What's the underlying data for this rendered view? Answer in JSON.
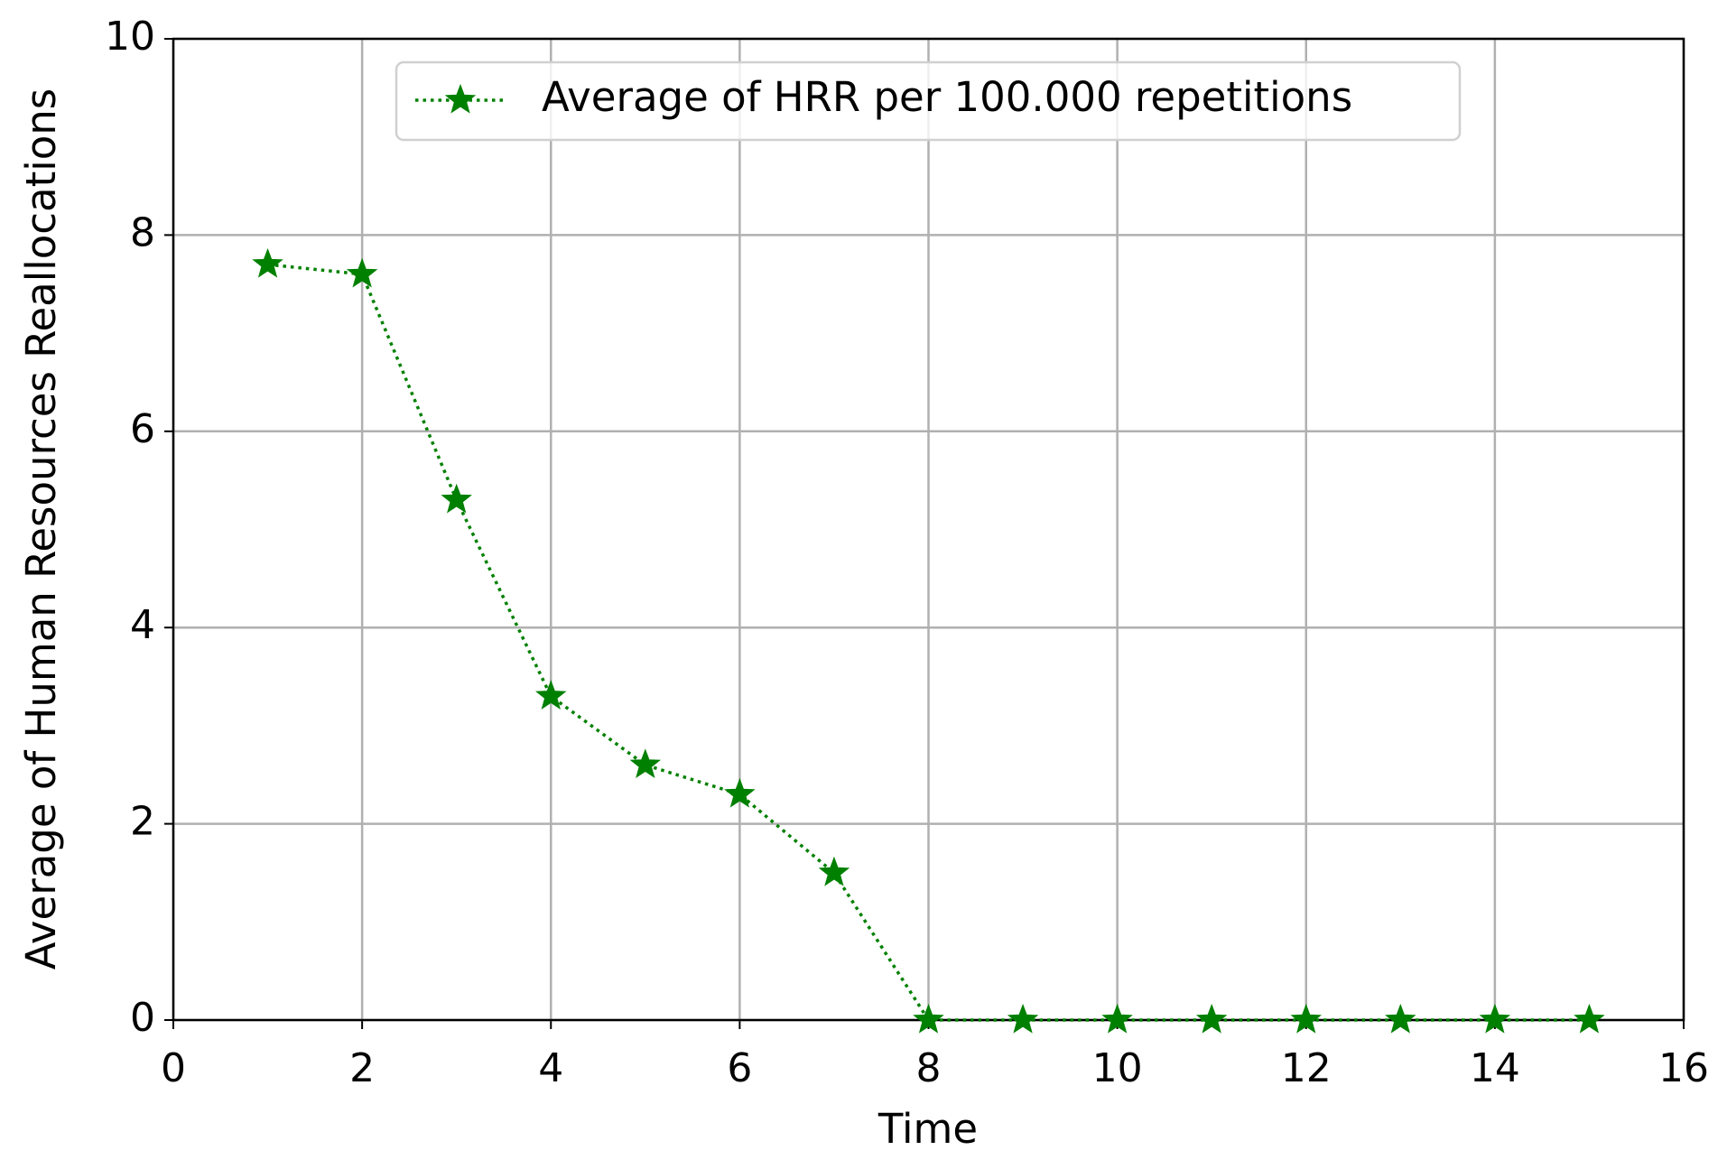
{
  "chart_data": {
    "type": "line",
    "xlabel": "Time",
    "ylabel": "Average of Human Resources Reallocations",
    "x": [
      1,
      2,
      3,
      4,
      5,
      6,
      7,
      8,
      9,
      10,
      11,
      12,
      13,
      14,
      15
    ],
    "series": [
      {
        "name": "Average of HRR per 100.000 repetitions",
        "color": "#008000",
        "values": [
          7.7,
          7.6,
          5.3,
          3.3,
          2.6,
          2.3,
          1.5,
          0,
          0,
          0,
          0,
          0,
          0,
          0,
          0
        ]
      }
    ],
    "xlim": [
      0,
      16
    ],
    "xticks": [
      0,
      2,
      4,
      6,
      8,
      10,
      12,
      14,
      16
    ],
    "ylim": [
      0,
      10
    ],
    "yticks": [
      0,
      2,
      4,
      6,
      8,
      10
    ],
    "grid": true,
    "legend": "upper center"
  }
}
